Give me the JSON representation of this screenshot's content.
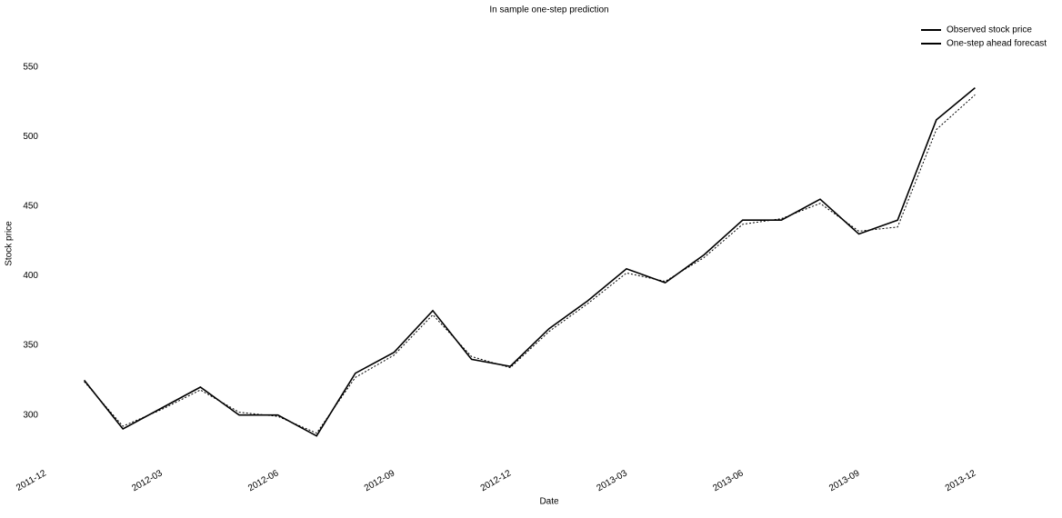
{
  "chart_data": {
    "type": "line",
    "title": "In sample one-step prediction",
    "x_label": "Date",
    "y_label": "Stock price",
    "x": [
      "2012-01",
      "2012-02",
      "2012-03",
      "2012-04",
      "2012-05",
      "2012-06",
      "2012-07",
      "2012-08",
      "2012-09",
      "2012-10",
      "2012-11",
      "2012-12",
      "2013-01",
      "2013-02",
      "2013-03",
      "2013-04",
      "2013-05",
      "2013-06",
      "2013-07",
      "2013-08",
      "2013-09",
      "2013-10",
      "2013-11",
      "2013-12"
    ],
    "series": [
      {
        "name": "Observed stock price",
        "color": "#000000",
        "style": "solid",
        "values": [
          325,
          290,
          305,
          320,
          300,
          300,
          285,
          330,
          345,
          375,
          340,
          335,
          362,
          382,
          405,
          395,
          415,
          440,
          440,
          455,
          430,
          440,
          512,
          535
        ]
      },
      {
        "name": "One-step ahead forecast",
        "color": "#000000",
        "style": "dotted",
        "values": [
          324,
          292,
          304,
          318,
          302,
          299,
          287,
          327,
          343,
          372,
          342,
          334,
          360,
          380,
          402,
          396,
          413,
          437,
          441,
          452,
          432,
          435,
          505,
          530
        ]
      }
    ],
    "xlim": [
      "2011-12",
      "2014-01"
    ],
    "xticks": [
      "2011-12",
      "2012-03",
      "2012-06",
      "2012-09",
      "2012-12",
      "2013-03",
      "2013-06",
      "2013-09",
      "2013-12"
    ],
    "ylim": [
      275,
      585
    ],
    "yticks": [
      300,
      350,
      400,
      450,
      500,
      550
    ],
    "grid": false,
    "legend": "upper right"
  }
}
